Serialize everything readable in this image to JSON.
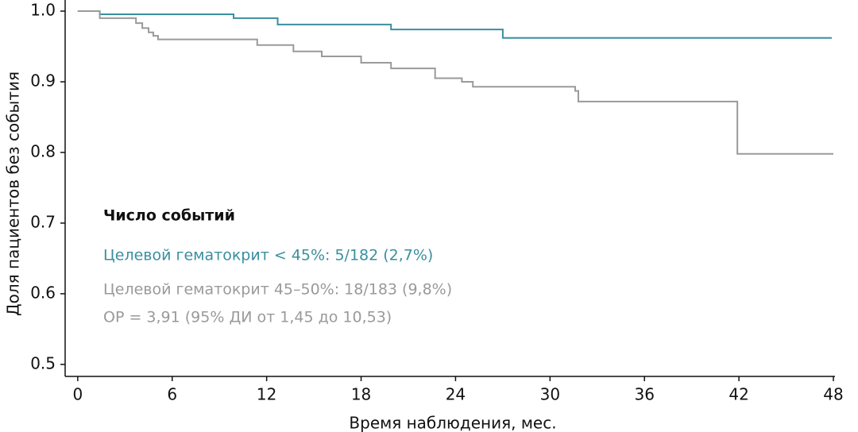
{
  "chart_data": {
    "type": "step",
    "xlabel": "Время наблюдения, мес.",
    "ylabel": "Доля пациентов без события",
    "legend_title": "Число событий",
    "annotation": "ОР = 3,91 (95% ДИ от 1,45 до 10,53)",
    "xlim": [
      -0.8,
      48.1
    ],
    "ylim": [
      0.483,
      1.0
    ],
    "xticks": [
      0,
      6,
      12,
      18,
      24,
      30,
      36,
      42,
      48
    ],
    "yticks": [
      {
        "value": 0.5,
        "label": "0.5"
      },
      0.6,
      0.7,
      0.8,
      0.9,
      {
        "value": 1.0,
        "label": "1.0"
      }
    ],
    "series": [
      {
        "name": "Целевой гематокрит < 45%: 5/182 (2,7%)",
        "color": "#3a8f9e",
        "x": [
          0,
          1.4,
          9.9,
          12.7,
          19.9,
          27.0,
          47.9
        ],
        "values": [
          1.0,
          0.9955,
          0.99,
          0.981,
          0.974,
          0.962,
          0.962
        ]
      },
      {
        "name": "Целевой гематокрит 45–50%: 18/183 (9,8%)",
        "color": "#9a9a9a",
        "x": [
          0,
          1.4,
          3.7,
          4.1,
          4.5,
          4.8,
          5.1,
          11.4,
          13.7,
          15.5,
          18.0,
          19.9,
          22.7,
          24.4,
          25.1,
          31.6,
          31.8,
          41.9,
          48.0
        ],
        "values": [
          1.0,
          0.99,
          0.983,
          0.976,
          0.97,
          0.965,
          0.96,
          0.952,
          0.943,
          0.936,
          0.927,
          0.919,
          0.905,
          0.9,
          0.893,
          0.887,
          0.872,
          0.798,
          0.798
        ]
      }
    ]
  }
}
